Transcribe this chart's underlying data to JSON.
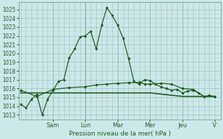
{
  "background_color": "#cce8e8",
  "grid_color_major": "#9dbfbf",
  "grid_color_minor": "#b8d8d8",
  "line_color": "#1a5c1a",
  "xlabel": "Pression niveau de la mer( hPa )",
  "ylim": [
    1012.5,
    1025.8
  ],
  "yticks": [
    1013,
    1014,
    1015,
    1016,
    1017,
    1018,
    1019,
    1020,
    1021,
    1022,
    1023,
    1024,
    1025
  ],
  "day_labels": [
    "Sam",
    "Lun",
    "Mar",
    "Mer",
    "Jeu",
    "V"
  ],
  "day_positions": [
    0.167,
    0.333,
    0.5,
    0.667,
    0.833,
    1.0
  ],
  "series1_x": [
    0.0,
    0.028,
    0.056,
    0.083,
    0.111,
    0.139,
    0.167,
    0.194,
    0.222,
    0.25,
    0.278,
    0.306,
    0.333,
    0.361,
    0.389,
    0.417,
    0.444,
    0.472,
    0.5,
    0.528,
    0.556,
    0.583,
    0.611,
    0.639,
    0.667,
    0.694,
    0.722,
    0.75,
    0.778,
    0.806,
    0.833,
    0.861,
    0.889,
    0.917,
    0.944,
    0.972,
    1.0
  ],
  "series1": [
    1014.2,
    1013.8,
    1014.8,
    1015.3,
    1013.0,
    1014.8,
    1015.8,
    1016.8,
    1017.0,
    1019.5,
    1020.5,
    1021.9,
    1022.0,
    1022.5,
    1020.5,
    1023.2,
    1025.2,
    1024.3,
    1023.2,
    1021.7,
    1019.4,
    1016.8,
    1016.5,
    1017.0,
    1016.9,
    1016.5,
    1016.2,
    1016.0,
    1015.8,
    1015.9,
    1015.5,
    1015.7,
    1015.8,
    1015.5,
    1015.1,
    1015.2,
    1015.1
  ],
  "series2_x": [
    0.0,
    0.083,
    0.167,
    0.25,
    0.333,
    0.389,
    0.444,
    0.5,
    0.556,
    0.611,
    0.639,
    0.667,
    0.722,
    0.778,
    0.833,
    0.889,
    0.944,
    1.0
  ],
  "series2": [
    1015.8,
    1015.1,
    1015.9,
    1016.1,
    1016.2,
    1016.4,
    1016.5,
    1016.6,
    1016.65,
    1016.7,
    1016.5,
    1016.5,
    1016.6,
    1016.5,
    1016.0,
    1015.9,
    1015.1,
    1015.1
  ],
  "series3_x": [
    0.0,
    0.167,
    0.333,
    0.5,
    0.667,
    0.833,
    1.0
  ],
  "series3": [
    1015.5,
    1015.5,
    1015.5,
    1015.5,
    1015.5,
    1015.1,
    1015.1
  ]
}
